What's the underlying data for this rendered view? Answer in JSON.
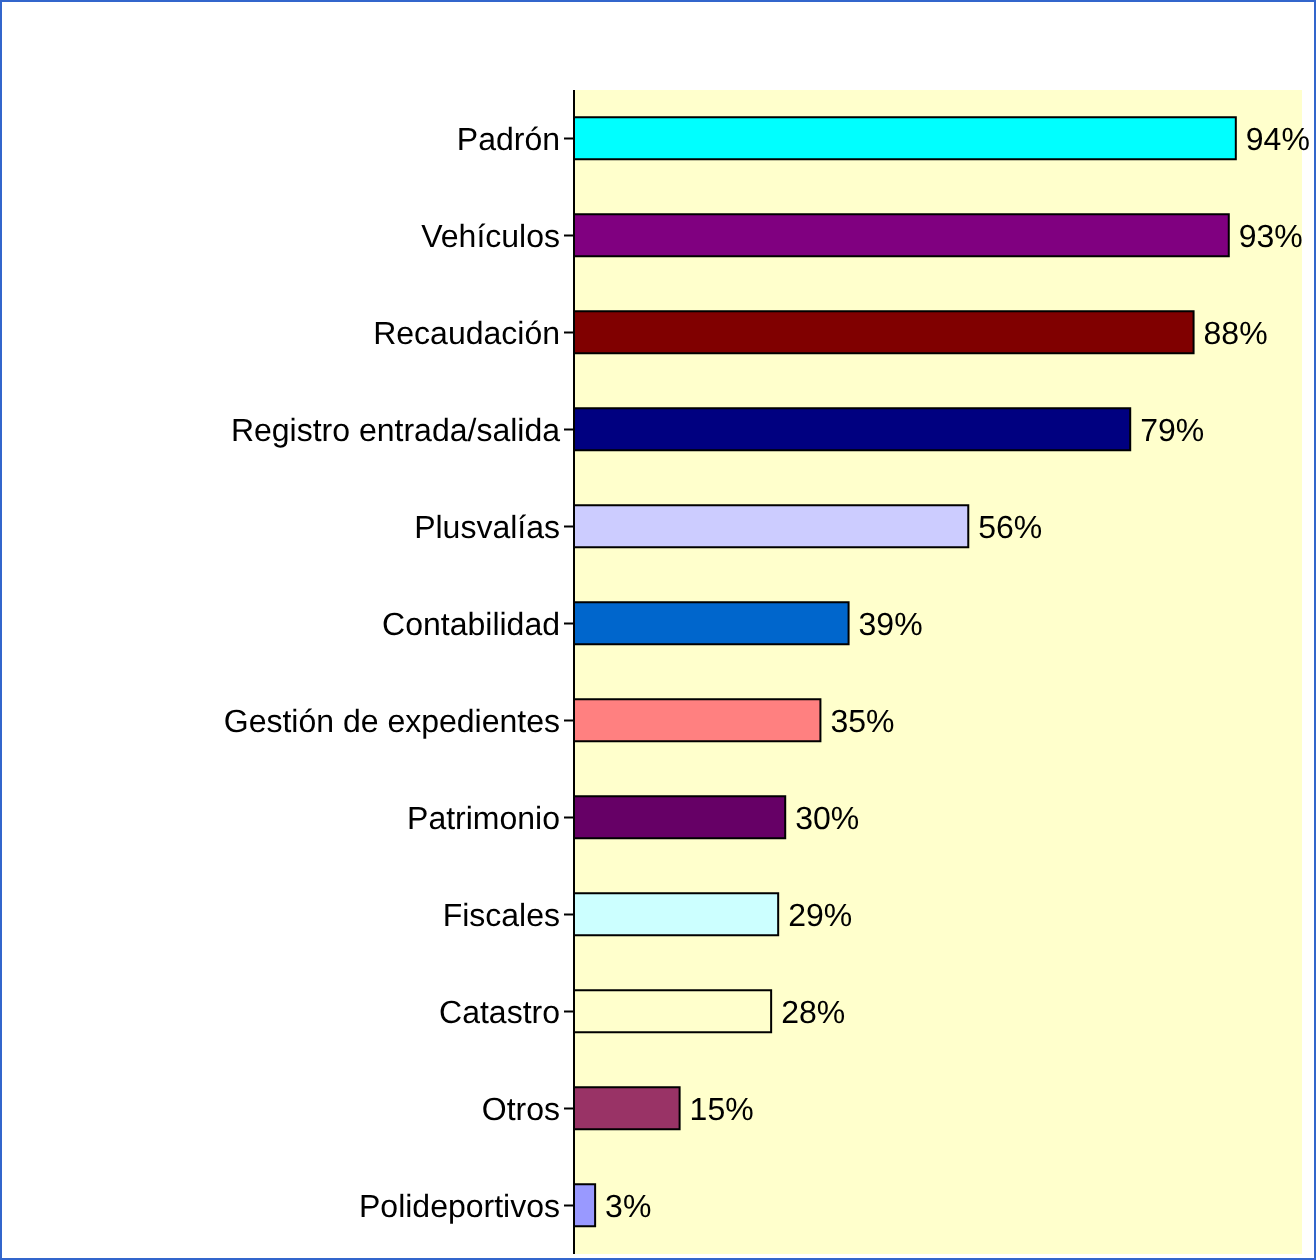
{
  "chart_data": {
    "type": "bar",
    "orientation": "horizontal",
    "categories": [
      "Padrón",
      "Vehículos",
      "Recaudación",
      "Registro entrada/salida",
      "Plusvalías",
      "Contabilidad",
      "Gestión de expedientes",
      "Patrimonio",
      "Fiscales",
      "Catastro",
      "Otros",
      "Polideportivos"
    ],
    "values": [
      94,
      93,
      88,
      79,
      56,
      39,
      35,
      30,
      29,
      28,
      15,
      3
    ],
    "value_labels": [
      "94%",
      "93%",
      "88%",
      "79%",
      "56%",
      "39%",
      "35%",
      "30%",
      "29%",
      "28%",
      "15%",
      "3%"
    ],
    "colors": [
      "#00ffff",
      "#800080",
      "#800000",
      "#000080",
      "#ccccff",
      "#0066cc",
      "#ff8080",
      "#660066",
      "#ccffff",
      "#ffffcc",
      "#993366",
      "#9999ff"
    ],
    "grid": false
  }
}
